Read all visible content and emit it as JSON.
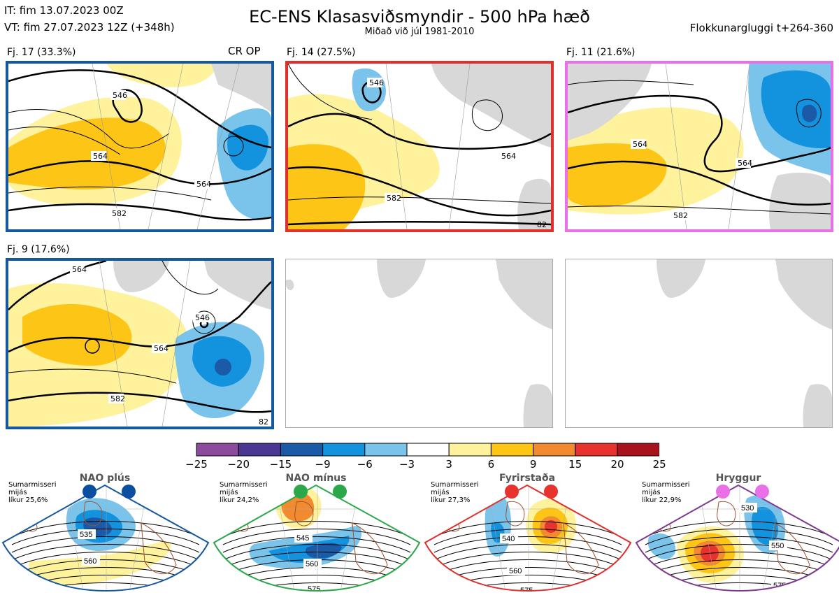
{
  "header": {
    "it": "IT: fim 13.07.2023 00Z",
    "vt": "VT: fim 27.07.2023 12Z  (+348h)",
    "title": "EC-ENS Klasasviðsmyndir - 500 hPa hæð",
    "subtitle": "Miðað við júl 1981-2010",
    "window": "Flokkunargluggi t+264-360"
  },
  "clusters": [
    {
      "label": "Fj. 17 (33.3%)",
      "border": "#1558a0",
      "tag": "CR OP",
      "contours": [
        "546",
        "564",
        "564",
        "582"
      ]
    },
    {
      "label": "Fj. 14 (27.5%)",
      "border": "#e0302c",
      "contours": [
        "546",
        "564",
        "582",
        "82"
      ]
    },
    {
      "label": "Fj. 11 (21.6%)",
      "border": "#ea70e8",
      "contours": [
        "564",
        "564",
        "582"
      ]
    },
    {
      "label": "Fj. 9 (17.6%)",
      "border": "#1558a0",
      "contours": [
        "564",
        "546",
        "564",
        "582",
        "82"
      ]
    }
  ],
  "colorbar": {
    "ticks": [
      "−25",
      "−20",
      "−15",
      "−9",
      "−6",
      "−3",
      "3",
      "6",
      "9",
      "15",
      "20",
      "25"
    ],
    "colors": [
      "#8c4c9e",
      "#4b3893",
      "#1a5aa6",
      "#1392de",
      "#7ac4ec",
      "#ffffff",
      "#fef39c",
      "#fdc617",
      "#f28b30",
      "#e8322e",
      "#a8121c"
    ]
  },
  "regimes": [
    {
      "name": "NAO plús",
      "season": "Sumarmisseri",
      "freq": "mijás",
      "prob": "líkur 25,6%",
      "dot_color": "#0a4fa0",
      "border": "#1558a0",
      "contours": [
        "535",
        "560"
      ]
    },
    {
      "name": "NAO mínus",
      "season": "Sumarmisseri",
      "freq": "mijás",
      "prob": "líkur 24,2%",
      "dot_color": "#2aa84a",
      "border": "#2aa84a",
      "contours": [
        "545",
        "560",
        "575"
      ]
    },
    {
      "name": "Fyrirstaða",
      "season": "Sumarmisseri",
      "freq": "mijás",
      "prob": "líkur 27,3%",
      "dot_color": "#e8322e",
      "border": "#e0302c",
      "contours": [
        "540",
        "560",
        "575"
      ]
    },
    {
      "name": "Hryggur",
      "season": "Sumarmisseri",
      "freq": "mijás",
      "prob": "líkur 22,9%",
      "dot_color": "#ea70e8",
      "border": "#7e3a8e",
      "contours": [
        "530",
        "550",
        "575"
      ]
    }
  ]
}
